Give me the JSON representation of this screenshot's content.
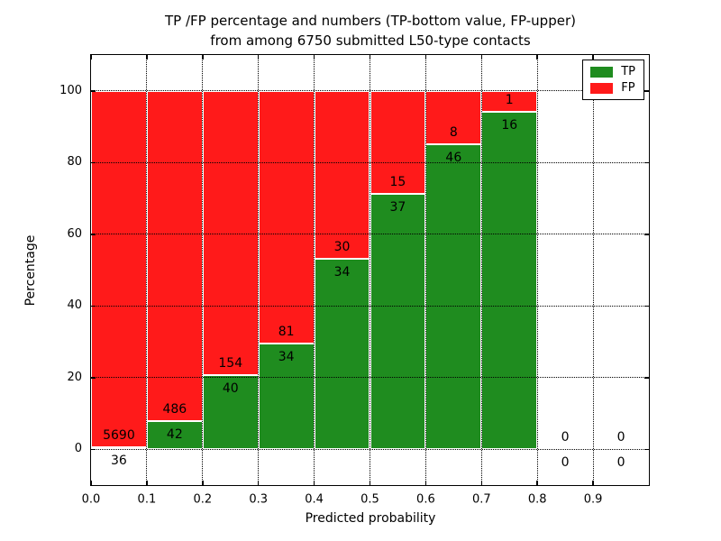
{
  "chart_data": {
    "type": "bar",
    "stacked": true,
    "title_line1": "TP /FP percentage and numbers (TP-bottom value, FP-upper)",
    "title_line2": "from among 6750 submitted L50-type contacts",
    "xlabel": "Predicted probability",
    "ylabel": "Percentage",
    "xlim": [
      0.0,
      1.0
    ],
    "ylim": [
      -10,
      110
    ],
    "grid": true,
    "legend_position": "upper right",
    "x_tick_labels": [
      "0.0",
      "0.1",
      "0.2",
      "0.3",
      "0.4",
      "0.5",
      "0.6",
      "0.7",
      "0.8",
      "0.9"
    ],
    "x_tick_values": [
      0.0,
      0.1,
      0.2,
      0.3,
      0.4,
      0.5,
      0.6,
      0.7,
      0.8,
      0.9
    ],
    "y_tick_values": [
      0,
      20,
      40,
      60,
      80,
      100
    ],
    "colors": {
      "tp": "#1f8c1f",
      "fp": "#ff1a1a",
      "grid": "#000000",
      "bar_edge": "#ffffff"
    },
    "legend": [
      {
        "label": "TP",
        "color": "#1f8c1f"
      },
      {
        "label": "FP",
        "color": "#ff1a1a"
      }
    ],
    "bins": [
      {
        "range": [
          0.0,
          0.1
        ],
        "tp": 36,
        "fp": 5690
      },
      {
        "range": [
          0.1,
          0.2
        ],
        "tp": 42,
        "fp": 486
      },
      {
        "range": [
          0.2,
          0.3
        ],
        "tp": 40,
        "fp": 154
      },
      {
        "range": [
          0.3,
          0.4
        ],
        "tp": 34,
        "fp": 81
      },
      {
        "range": [
          0.4,
          0.5
        ],
        "tp": 34,
        "fp": 30
      },
      {
        "range": [
          0.5,
          0.6
        ],
        "tp": 37,
        "fp": 15
      },
      {
        "range": [
          0.6,
          0.7
        ],
        "tp": 46,
        "fp": 8
      },
      {
        "range": [
          0.7,
          0.8
        ],
        "tp": 16,
        "fp": 1
      },
      {
        "range": [
          0.8,
          0.9
        ],
        "tp": 0,
        "fp": 0
      },
      {
        "range": [
          0.9,
          1.0
        ],
        "tp": 0,
        "fp": 0
      }
    ]
  }
}
